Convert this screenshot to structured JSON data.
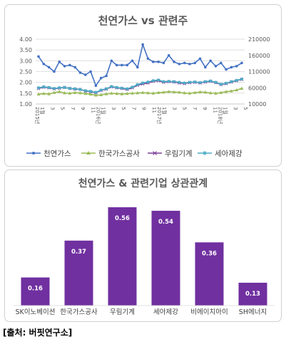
{
  "chart_data": [
    {
      "type": "line",
      "title": "천연가스 vs 관련주",
      "x_ticks": [
        "1월",
        "3",
        "5",
        "7",
        "9",
        "11",
        "1월",
        "3",
        "5",
        "7",
        "9",
        "11",
        "1월",
        "3",
        "5",
        "7",
        "9",
        "11",
        "1월",
        "3",
        "5"
      ],
      "year_labels": [
        "2015년",
        "2016년",
        "2017년",
        "2018년"
      ],
      "y_left": {
        "ticks": [
          "1.00",
          "1.50",
          "2.00",
          "2.50",
          "3.00",
          "3.50",
          "4.00"
        ],
        "range": [
          1.0,
          4.0
        ]
      },
      "y_right": {
        "ticks": [
          "10000",
          "60000",
          "110000",
          "160000",
          "210000"
        ],
        "range": [
          10000,
          210000
        ]
      },
      "grid": true,
      "legend_position": "bottom",
      "series": [
        {
          "name": "천연가스",
          "axis": "left",
          "color": "#4472c4",
          "marker": "circle",
          "values": [
            3.2,
            2.85,
            2.7,
            2.5,
            2.95,
            2.75,
            2.8,
            2.7,
            2.45,
            2.35,
            2.5,
            1.85,
            2.2,
            2.3,
            3.0,
            2.8,
            2.8,
            2.8,
            3.0,
            2.7,
            3.75,
            3.1,
            2.95,
            2.95,
            2.9,
            3.25,
            2.95,
            2.85,
            2.9,
            2.85,
            2.9,
            3.1,
            2.7,
            3.0,
            2.75,
            2.9,
            2.6,
            2.7,
            2.75,
            2.9
          ]
        },
        {
          "name": "한국가스공사",
          "axis": "right",
          "color": "#9bbb59",
          "marker": "triangle",
          "values": [
            40000,
            42000,
            41000,
            45000,
            48000,
            44000,
            43000,
            45000,
            44000,
            42000,
            40000,
            37000,
            38000,
            41000,
            43000,
            42000,
            41000,
            42000,
            43000,
            44000,
            45000,
            44000,
            43000,
            45000,
            46000,
            48000,
            47000,
            46000,
            44000,
            43000,
            45000,
            47000,
            46000,
            44000,
            43000,
            45000,
            48000,
            50000,
            53000,
            58000
          ]
        },
        {
          "name": "우림기계",
          "axis": "right",
          "color": "#7e3f98",
          "marker": "x",
          "values": [
            58000,
            62000,
            60000,
            57000,
            59000,
            61000,
            58000,
            56000,
            55000,
            50000,
            48000,
            45000,
            52000,
            56000,
            63000,
            60000,
            58000,
            55000,
            60000,
            68000,
            72000,
            75000,
            80000,
            82000,
            77000,
            79000,
            78000,
            75000,
            73000,
            76000,
            77000,
            75000,
            78000,
            80000,
            76000,
            70000,
            73000,
            78000,
            82000,
            86000
          ]
        },
        {
          "name": "세아제강",
          "axis": "right",
          "color": "#4bacc6",
          "marker": "star",
          "values": [
            60000,
            63000,
            61000,
            58000,
            60000,
            61000,
            58000,
            57000,
            55000,
            51000,
            49000,
            46000,
            53000,
            57000,
            64000,
            61000,
            59000,
            57000,
            62000,
            70000,
            75000,
            78000,
            82000,
            84000,
            79000,
            80000,
            79000,
            77000,
            75000,
            77000,
            78000,
            76000,
            79000,
            81000,
            77000,
            71000,
            74000,
            79000,
            83000,
            87000
          ]
        }
      ]
    },
    {
      "type": "bar",
      "title": "천연가스 & 관련기업 상관관계",
      "categories": [
        "SK이노베이션",
        "한국가스공사",
        "우림기계",
        "세아제강",
        "비에이치아이",
        "SH에너지"
      ],
      "values": [
        0.16,
        0.37,
        0.56,
        0.54,
        0.36,
        0.13
      ],
      "value_labels": [
        "0.16",
        "0.37",
        "0.56",
        "0.54",
        "0.36",
        "0.13"
      ],
      "ylim": [
        0,
        0.56
      ],
      "bar_color": "#7030a0",
      "grid": false
    }
  ],
  "source": "[출처: 버핏연구소]"
}
